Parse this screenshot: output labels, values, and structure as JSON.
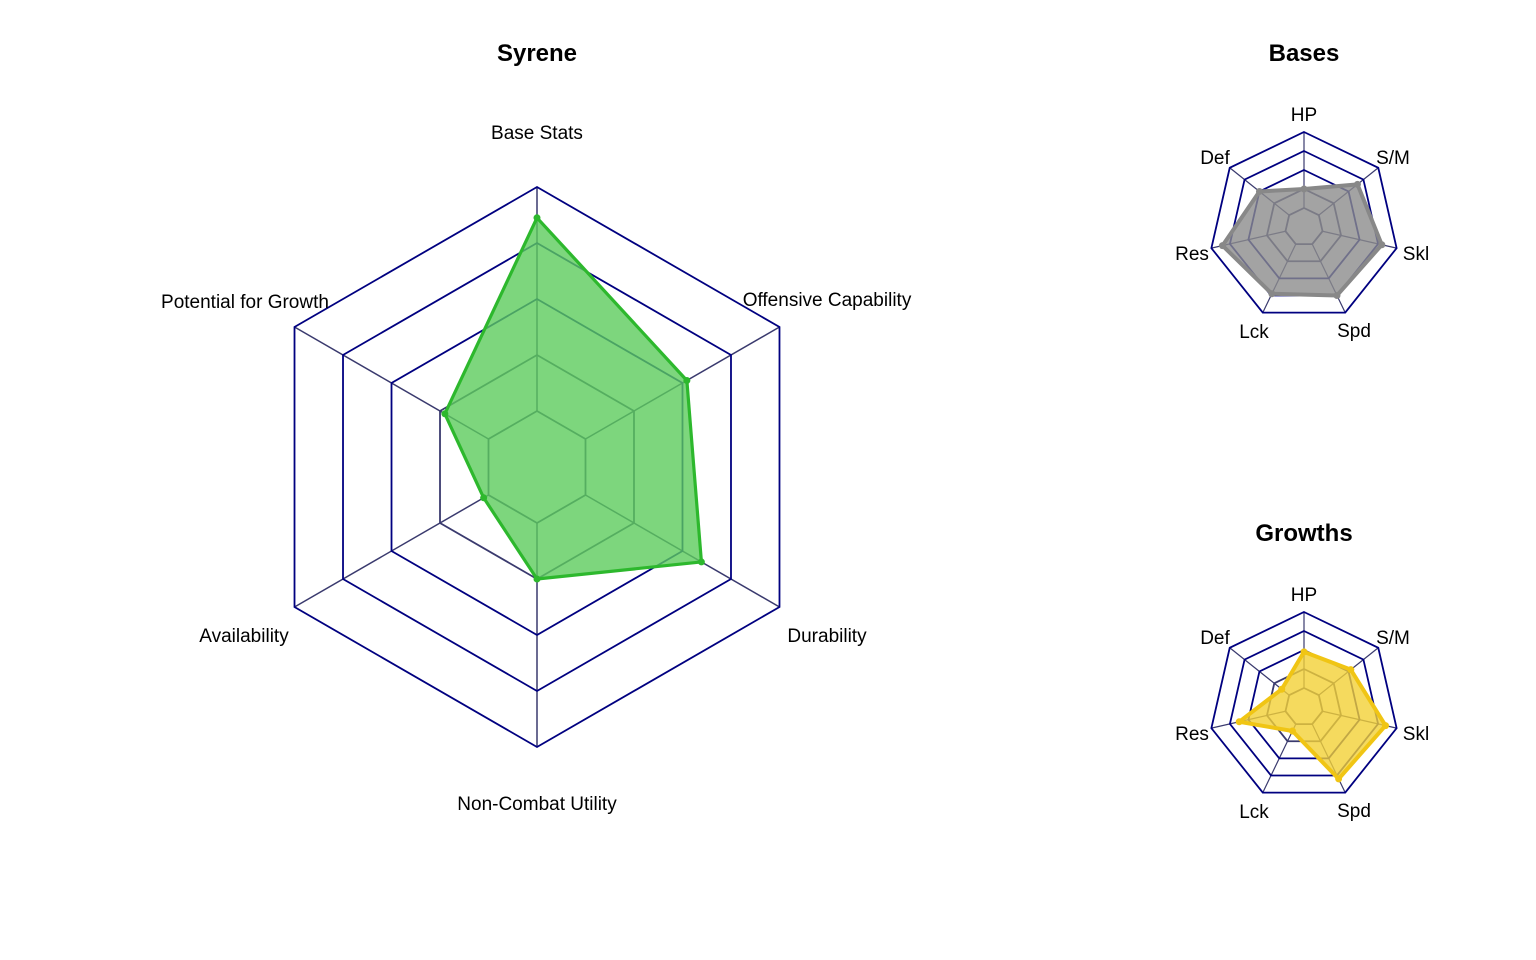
{
  "chart_data": [
    {
      "type": "radar",
      "title": "Syrene",
      "axes": [
        "Base Stats",
        "Offensive Capability",
        "Durability",
        "Non-Combat Utility",
        "Availability",
        "Potential for Growth"
      ],
      "rmax": 5,
      "grid_levels": 5,
      "series": [
        {
          "values": [
            4.45,
            3.09,
            3.39,
            2.0,
            1.1,
            1.9
          ],
          "fill": "#5ccc5c",
          "stroke": "#2db82d"
        }
      ]
    },
    {
      "type": "radar",
      "title": "Bases",
      "axes": [
        "HP",
        "S/M",
        "Skl",
        "Spd",
        "Lck",
        "Res",
        "Def"
      ],
      "rmax": 5,
      "grid_levels": 5,
      "series": [
        {
          "values": [
            2.0,
            3.6,
            4.2,
            4.0,
            3.9,
            4.4,
            3.0
          ],
          "fill": "#8c8c8c",
          "stroke": "#888888"
        }
      ]
    },
    {
      "type": "radar",
      "title": "Growths",
      "axes": [
        "HP",
        "S/M",
        "Skl",
        "Spd",
        "Lck",
        "Res",
        "Def"
      ],
      "rmax": 5,
      "grid_levels": 5,
      "series": [
        {
          "values": [
            2.9,
            3.15,
            4.4,
            4.2,
            1.4,
            3.5,
            1.5
          ],
          "fill": "#f2d136",
          "stroke": "#f0c514"
        }
      ]
    }
  ],
  "colors": {
    "grid": "#000080",
    "spoke": "#3a3a6e"
  }
}
